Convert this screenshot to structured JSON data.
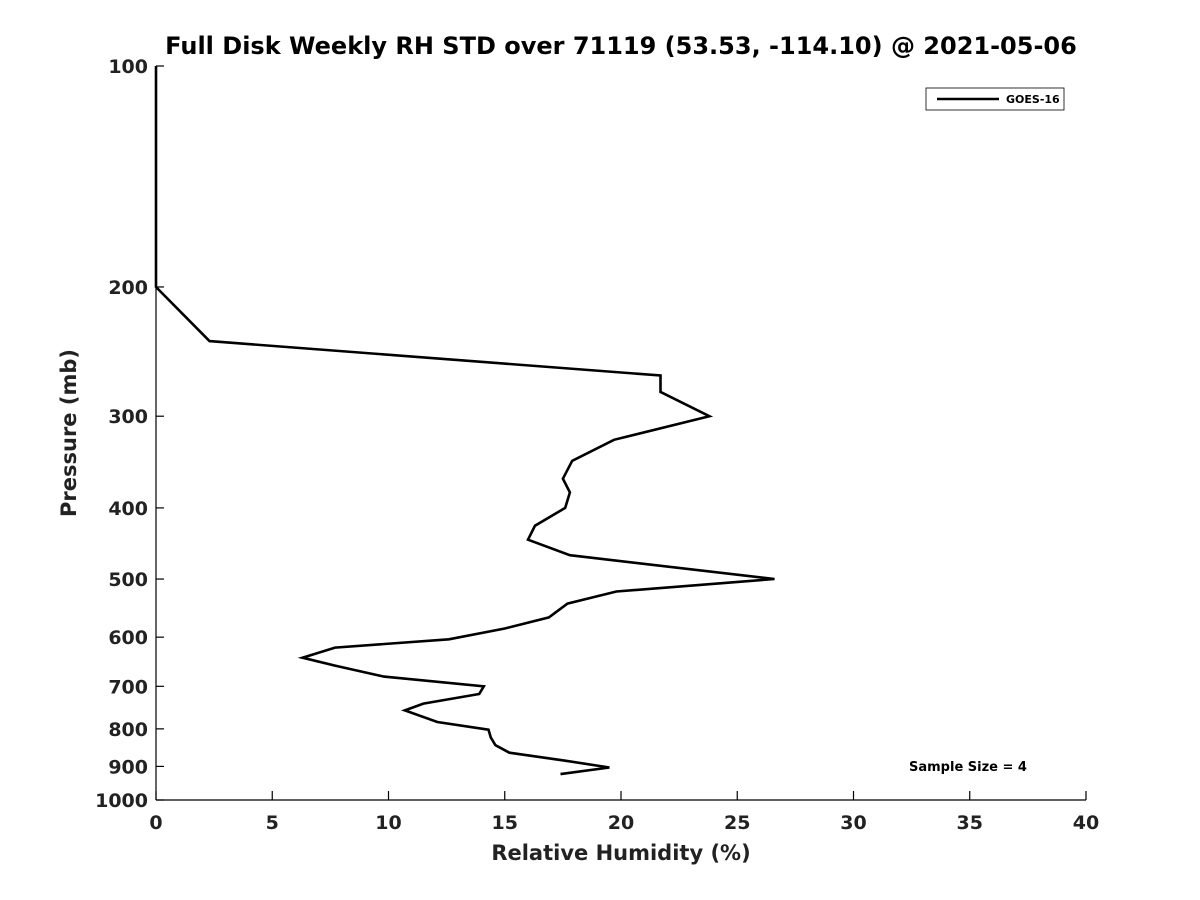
{
  "chart_data": {
    "type": "line",
    "title": "Full Disk Weekly RH STD over 71119 (53.53, -114.10) @ 2021-05-06",
    "xlabel": "Relative Humidity (%)",
    "ylabel": "Pressure (mb)",
    "xlim": [
      0,
      40
    ],
    "ylim": [
      100,
      1000
    ],
    "yscale": "log",
    "yaxis_inverted": true,
    "grid": false,
    "legend_position": "top-right",
    "x_ticks": [
      0,
      5,
      10,
      15,
      20,
      25,
      30,
      35,
      40
    ],
    "x_tick_labels": [
      "0",
      "5",
      "10",
      "15",
      "20",
      "25",
      "30",
      "35",
      "40"
    ],
    "y_ticks": [
      100,
      200,
      300,
      400,
      500,
      600,
      700,
      800,
      900,
      1000
    ],
    "y_tick_labels": [
      "100",
      "200",
      "300",
      "400",
      "500",
      "600",
      "700",
      "800",
      "900",
      "1000"
    ],
    "series": [
      {
        "name": "GOES-16",
        "color": "#000000",
        "x": [
          0,
          0,
          0,
          0,
          0,
          2.3,
          21.7,
          21.7,
          23.8,
          19.7,
          17.9,
          17.5,
          17.8,
          17.6,
          16.3,
          16.0,
          17.8,
          26.6,
          19.8,
          17.7,
          16.9,
          15.0,
          12.6,
          7.7,
          6.3,
          7.7,
          9.8,
          14.1,
          13.9,
          11.5,
          10.7,
          12.1,
          14.3,
          14.4,
          14.6,
          15.2,
          17.6,
          19.5,
          17.4
        ],
        "y": [
          100,
          130,
          160,
          190,
          200,
          237,
          264,
          278,
          300,
          323,
          345,
          365,
          381,
          400,
          423,
          442,
          464,
          500,
          520,
          540,
          564,
          584,
          604,
          620,
          640,
          656,
          679,
          700,
          717,
          739,
          755,
          783,
          802,
          822,
          842,
          862,
          884,
          903,
          922
        ]
      }
    ],
    "annotations": [
      {
        "text": "Sample Size = 4",
        "position": "bottom-right"
      }
    ]
  }
}
